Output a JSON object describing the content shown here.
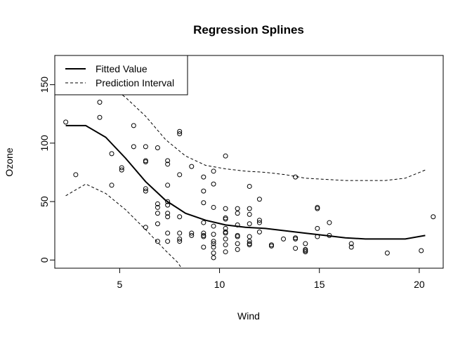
{
  "chart_data": {
    "type": "scatter",
    "title": "Regression Splines",
    "xlabel": "Wind",
    "ylabel": "Ozone",
    "xlim": [
      1.75,
      21.2
    ],
    "ylim": [
      -7,
      175
    ],
    "x_ticks": [
      5,
      10,
      15,
      20
    ],
    "y_ticks": [
      0,
      50,
      100,
      150
    ],
    "grid": false,
    "legend_position": "top-left",
    "legend": [
      {
        "label": "Fitted Value",
        "style": "solid"
      },
      {
        "label": "Prediction Interval",
        "style": "dashed"
      }
    ],
    "points": [
      [
        2.3,
        118
      ],
      [
        2.8,
        73
      ],
      [
        4.0,
        135
      ],
      [
        4.0,
        122
      ],
      [
        4.6,
        91
      ],
      [
        4.6,
        64
      ],
      [
        5.1,
        79
      ],
      [
        5.1,
        77
      ],
      [
        5.7,
        115
      ],
      [
        5.7,
        97
      ],
      [
        6.3,
        97
      ],
      [
        6.3,
        85
      ],
      [
        6.3,
        84
      ],
      [
        6.3,
        61
      ],
      [
        6.3,
        59
      ],
      [
        6.3,
        28
      ],
      [
        6.9,
        96
      ],
      [
        6.9,
        48
      ],
      [
        6.9,
        45
      ],
      [
        6.9,
        40
      ],
      [
        6.9,
        31
      ],
      [
        6.9,
        16
      ],
      [
        7.4,
        85
      ],
      [
        7.4,
        82
      ],
      [
        7.4,
        64
      ],
      [
        7.4,
        50
      ],
      [
        7.4,
        47
      ],
      [
        7.4,
        40
      ],
      [
        7.4,
        37
      ],
      [
        7.4,
        23
      ],
      [
        7.4,
        16
      ],
      [
        8.0,
        110
      ],
      [
        8.0,
        108
      ],
      [
        8.0,
        73
      ],
      [
        8.0,
        37
      ],
      [
        8.0,
        23
      ],
      [
        8.0,
        18
      ],
      [
        8.0,
        16
      ],
      [
        8.6,
        80
      ],
      [
        8.6,
        23
      ],
      [
        8.6,
        21
      ],
      [
        9.2,
        71
      ],
      [
        9.2,
        59
      ],
      [
        9.2,
        49
      ],
      [
        9.2,
        32
      ],
      [
        9.2,
        23
      ],
      [
        9.2,
        21
      ],
      [
        9.2,
        20
      ],
      [
        9.2,
        11
      ],
      [
        9.7,
        76
      ],
      [
        9.7,
        65
      ],
      [
        9.7,
        45
      ],
      [
        9.7,
        29
      ],
      [
        9.7,
        22
      ],
      [
        9.7,
        16
      ],
      [
        9.7,
        14
      ],
      [
        9.7,
        11
      ],
      [
        9.7,
        6
      ],
      [
        9.7,
        2
      ],
      [
        10.3,
        89
      ],
      [
        10.3,
        44
      ],
      [
        10.3,
        36
      ],
      [
        10.3,
        35
      ],
      [
        10.3,
        27
      ],
      [
        10.3,
        24
      ],
      [
        10.3,
        23
      ],
      [
        10.3,
        18
      ],
      [
        10.3,
        13
      ],
      [
        10.3,
        7
      ],
      [
        10.9,
        44
      ],
      [
        10.9,
        40
      ],
      [
        10.9,
        30
      ],
      [
        10.9,
        21
      ],
      [
        10.9,
        20
      ],
      [
        10.9,
        14
      ],
      [
        10.9,
        9
      ],
      [
        11.5,
        63
      ],
      [
        11.5,
        44
      ],
      [
        11.5,
        39
      ],
      [
        11.5,
        31
      ],
      [
        11.5,
        20
      ],
      [
        11.5,
        16
      ],
      [
        11.5,
        14
      ],
      [
        11.5,
        13
      ],
      [
        12.0,
        52
      ],
      [
        12.0,
        34
      ],
      [
        12.0,
        32
      ],
      [
        12.0,
        24
      ],
      [
        12.6,
        13
      ],
      [
        12.6,
        12
      ],
      [
        13.2,
        18
      ],
      [
        13.8,
        71
      ],
      [
        13.8,
        19
      ],
      [
        13.8,
        18
      ],
      [
        13.8,
        10
      ],
      [
        14.3,
        14
      ],
      [
        14.3,
        9
      ],
      [
        14.3,
        8
      ],
      [
        14.3,
        7
      ],
      [
        14.9,
        45
      ],
      [
        14.9,
        44
      ],
      [
        14.9,
        27
      ],
      [
        14.9,
        20
      ],
      [
        15.5,
        32
      ],
      [
        15.5,
        21
      ],
      [
        16.6,
        14
      ],
      [
        16.6,
        11
      ],
      [
        18.4,
        6
      ],
      [
        20.1,
        8
      ],
      [
        20.7,
        37
      ]
    ],
    "series": [
      {
        "name": "Fitted Value",
        "style": "solid",
        "x": [
          2.3,
          3.3,
          4.3,
          5.3,
          6.3,
          7.3,
          8.3,
          9.3,
          10.3,
          11.3,
          12.3,
          13.3,
          14.3,
          15.3,
          16.3,
          17.3,
          18.3,
          19.3,
          20.3
        ],
        "y": [
          115,
          115,
          105,
          87,
          67,
          51,
          40,
          34,
          30,
          28,
          27,
          25,
          23,
          21,
          19,
          18,
          18,
          18,
          21
        ]
      },
      {
        "name": "Prediction Interval",
        "style": "dashed",
        "x": [
          2.3,
          3.3,
          4.3,
          5.3,
          6.3,
          7.3,
          8.3,
          9.3,
          10.3,
          11.3,
          12.3,
          13.3,
          14.3,
          15.3,
          16.3,
          17.3,
          18.3,
          19.3,
          20.3
        ],
        "y": [
          174,
          165,
          152,
          139,
          123,
          103,
          89,
          81,
          78,
          76,
          75,
          73,
          70,
          69,
          68,
          68,
          68,
          70,
          77
        ]
      },
      {
        "name": "Prediction Interval",
        "style": "dashed",
        "x": [
          2.3,
          3.3,
          4.3,
          5.3,
          6.3,
          7.3,
          7.9,
          8.1
        ],
        "y": [
          55,
          65,
          57,
          43,
          26,
          8,
          -2,
          -7
        ]
      }
    ]
  }
}
